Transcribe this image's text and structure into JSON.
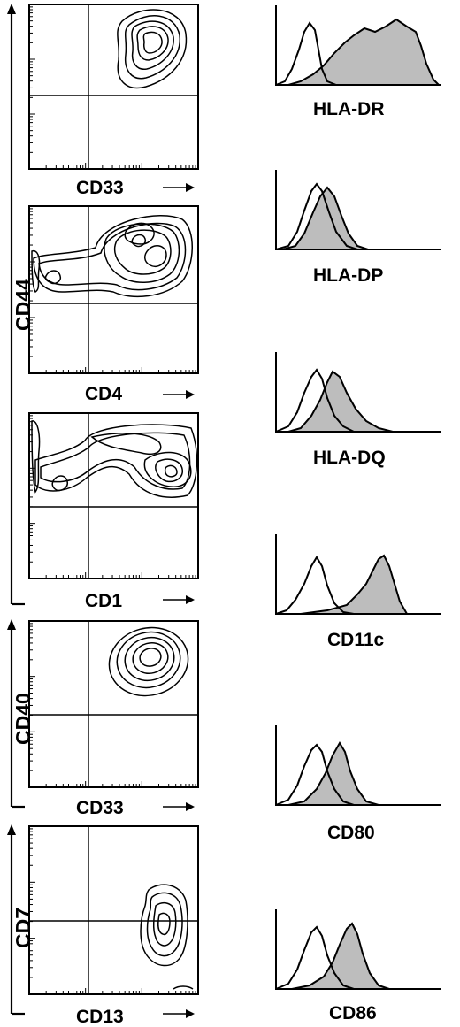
{
  "chart_data": [
    {
      "type": "contour",
      "panel": 1,
      "xlabel": "CD33",
      "ylabel_group": "CD44"
    },
    {
      "type": "contour",
      "panel": 2,
      "xlabel": "CD4",
      "ylabel": "CD44"
    },
    {
      "type": "contour",
      "panel": 3,
      "xlabel": "CD1",
      "ylabel_group": "CD44"
    },
    {
      "type": "contour",
      "panel": 4,
      "xlabel": "CD33",
      "ylabel": "CD40"
    },
    {
      "type": "contour",
      "panel": 5,
      "xlabel": "CD13",
      "ylabel": "CD7"
    },
    {
      "type": "histogram",
      "marker": "HLA-DR",
      "series": [
        {
          "fill": "none"
        },
        {
          "fill": "gray"
        }
      ]
    },
    {
      "type": "histogram",
      "marker": "HLA-DP",
      "series": [
        {
          "fill": "none"
        },
        {
          "fill": "gray"
        }
      ]
    },
    {
      "type": "histogram",
      "marker": "HLA-DQ",
      "series": [
        {
          "fill": "none"
        },
        {
          "fill": "gray"
        }
      ]
    },
    {
      "type": "histogram",
      "marker": "CD11c",
      "series": [
        {
          "fill": "none"
        },
        {
          "fill": "gray"
        }
      ]
    },
    {
      "type": "histogram",
      "marker": "CD80",
      "series": [
        {
          "fill": "none"
        },
        {
          "fill": "gray"
        }
      ]
    },
    {
      "type": "histogram",
      "marker": "CD86",
      "series": [
        {
          "fill": "none"
        },
        {
          "fill": "gray"
        }
      ]
    }
  ],
  "colors": {
    "line": "#000000",
    "fill": "#bdbdbd",
    "background": "#ffffff"
  },
  "labels": {
    "cd44_group": "CD44",
    "cd33_a": "CD33",
    "cd4": "CD4",
    "cd1": "CD1",
    "cd40": "CD40",
    "cd33_b": "CD33",
    "cd7": "CD7",
    "cd13": "CD13",
    "hla_dr": "HLA-DR",
    "hla_dp": "HLA-DP",
    "hla_dq": "HLA-DQ",
    "cd11c": "CD11c",
    "cd80": "CD80",
    "cd86": "CD86"
  }
}
